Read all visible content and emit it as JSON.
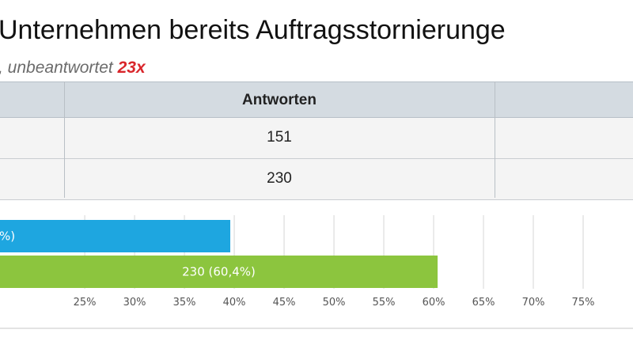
{
  "title": "Unternehmen bereits Auftragsstornierunge",
  "subtitle": {
    "text": ", unbeantwortet ",
    "count": "23x"
  },
  "table": {
    "header": "Antworten",
    "rows": [
      {
        "answers": "151"
      },
      {
        "answers": "230"
      }
    ]
  },
  "chart_data": {
    "type": "bar",
    "orientation": "horizontal",
    "x_tick_labels": [
      "25%",
      "30%",
      "35%",
      "40%",
      "45%",
      "50%",
      "55%",
      "60%",
      "65%",
      "70%",
      "75%"
    ],
    "x_ticks": [
      25,
      30,
      35,
      40,
      45,
      50,
      55,
      60,
      65,
      70,
      75
    ],
    "xlim": [
      16.5,
      80
    ],
    "bars": [
      {
        "value": 39.6,
        "label": "%)",
        "color": "#1ea6e0"
      },
      {
        "value": 60.4,
        "label": "230 (60,4%)",
        "color": "#8cc53e"
      }
    ],
    "grid": true
  }
}
